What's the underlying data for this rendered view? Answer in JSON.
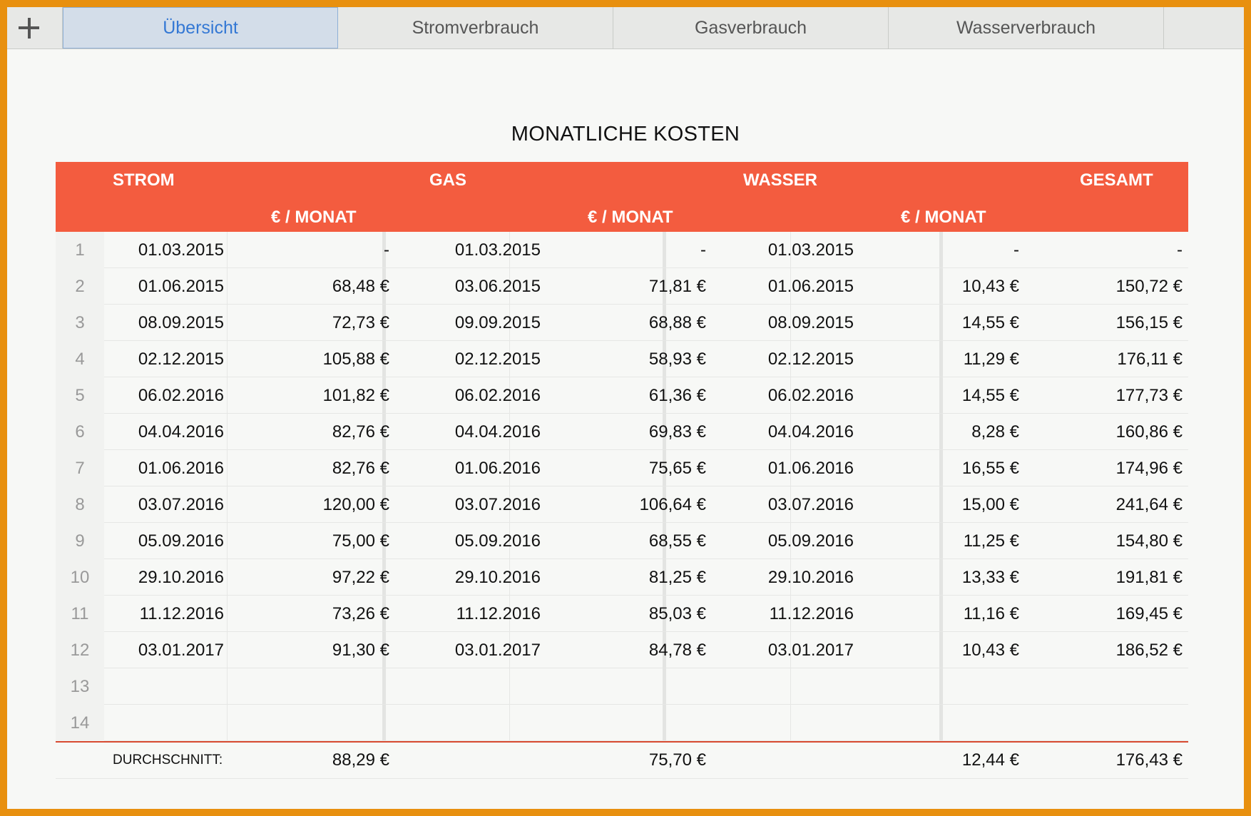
{
  "tabs": {
    "add_icon": "plus-icon",
    "items": [
      "Übersicht",
      "Stromverbrauch",
      "Gasverbrauch",
      "Wasserverbrauch"
    ],
    "active": "Übersicht",
    "active_color": "#3478d4"
  },
  "title": "MONATLICHE KOSTEN",
  "header": {
    "strom": "STROM",
    "gas": "GAS",
    "wasser": "WASSER",
    "gesamt": "GESAMT",
    "unit": "€ / MONAT",
    "color": "#f35c3f"
  },
  "rows": [
    [
      "1",
      "01.03.2015",
      "-",
      "01.03.2015",
      "-",
      "01.03.2015",
      "-",
      "-"
    ],
    [
      "2",
      "01.06.2015",
      "68,48 €",
      "03.06.2015",
      "71,81 €",
      "01.06.2015",
      "10,43 €",
      "150,72 €"
    ],
    [
      "3",
      "08.09.2015",
      "72,73 €",
      "09.09.2015",
      "68,88 €",
      "08.09.2015",
      "14,55 €",
      "156,15 €"
    ],
    [
      "4",
      "02.12.2015",
      "105,88 €",
      "02.12.2015",
      "58,93 €",
      "02.12.2015",
      "11,29 €",
      "176,11 €"
    ],
    [
      "5",
      "06.02.2016",
      "101,82 €",
      "06.02.2016",
      "61,36 €",
      "06.02.2016",
      "14,55 €",
      "177,73 €"
    ],
    [
      "6",
      "04.04.2016",
      "82,76 €",
      "04.04.2016",
      "69,83 €",
      "04.04.2016",
      "8,28 €",
      "160,86 €"
    ],
    [
      "7",
      "01.06.2016",
      "82,76 €",
      "01.06.2016",
      "75,65 €",
      "01.06.2016",
      "16,55 €",
      "174,96 €"
    ],
    [
      "8",
      "03.07.2016",
      "120,00 €",
      "03.07.2016",
      "106,64 €",
      "03.07.2016",
      "15,00 €",
      "241,64 €"
    ],
    [
      "9",
      "05.09.2016",
      "75,00 €",
      "05.09.2016",
      "68,55 €",
      "05.09.2016",
      "11,25 €",
      "154,80 €"
    ],
    [
      "10",
      "29.10.2016",
      "97,22 €",
      "29.10.2016",
      "81,25 €",
      "29.10.2016",
      "13,33 €",
      "191,81 €"
    ],
    [
      "11",
      "11.12.2016",
      "73,26 €",
      "11.12.2016",
      "85,03 €",
      "11.12.2016",
      "11,16 €",
      "169,45 €"
    ],
    [
      "12",
      "03.01.2017",
      "91,30 €",
      "03.01.2017",
      "84,78 €",
      "03.01.2017",
      "10,43 €",
      "186,52 €"
    ],
    [
      "13",
      "",
      "",
      "",
      "",
      "",
      "",
      ""
    ],
    [
      "14",
      "",
      "",
      "",
      "",
      "",
      "",
      ""
    ]
  ],
  "footer": {
    "label": "DURCHSCHNITT:",
    "strom": "88,29 €",
    "gas": "75,70 €",
    "wasser": "12,44 €",
    "gesamt": "176,43 €"
  }
}
